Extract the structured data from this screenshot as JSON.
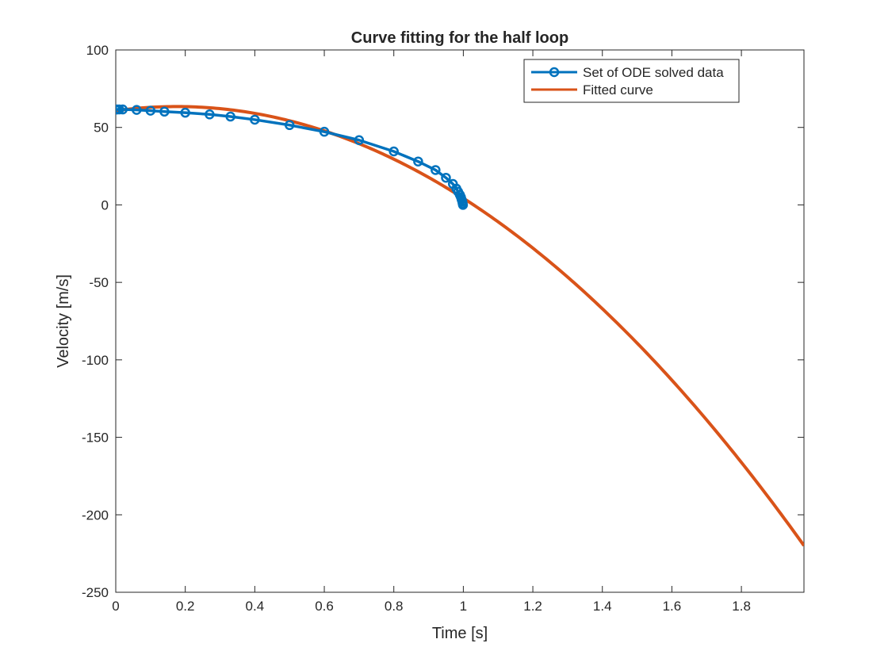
{
  "chart_data": {
    "type": "line",
    "title": "Curve fitting for the half loop",
    "xlabel": "Time [s]",
    "ylabel": "Velocity [m/s]",
    "xlim": [
      0,
      1.98
    ],
    "ylim": [
      -250,
      100
    ],
    "xticks": [
      0,
      0.2,
      0.4,
      0.6,
      0.8,
      1,
      1.2,
      1.4,
      1.6,
      1.8
    ],
    "xtick_labels": [
      "0",
      "0.2",
      "0.4",
      "0.6",
      "0.8",
      "1",
      "1.2",
      "1.4",
      "1.6",
      "1.8"
    ],
    "yticks": [
      100,
      50,
      0,
      -50,
      -100,
      -150,
      -200,
      -250
    ],
    "ytick_labels": [
      "100",
      "50",
      "0",
      "-50",
      "-100",
      "-150",
      "-200",
      "-250"
    ],
    "grid": false,
    "legend_location": "top-right",
    "series": [
      {
        "name": "Set of ODE solved data",
        "color": "#0072BD",
        "marker": "circle",
        "x": [
          0,
          0.004,
          0.01,
          0.02,
          0.06,
          0.1,
          0.14,
          0.2,
          0.27,
          0.33,
          0.4,
          0.5,
          0.6,
          0.7,
          0.8,
          0.87,
          0.92,
          0.95,
          0.97,
          0.98,
          0.985,
          0.99,
          0.993,
          0.995,
          0.997,
          0.998,
          0.999
        ],
        "y": [
          61.5,
          61.6,
          61.6,
          61.6,
          61.3,
          60.8,
          60.2,
          59.5,
          58.4,
          57.0,
          55.0,
          51.5,
          47.2,
          41.8,
          34.5,
          28.0,
          22.5,
          17.5,
          13.5,
          10.5,
          8.5,
          6.5,
          5.0,
          3.5,
          2.2,
          1.0,
          0.0
        ]
      },
      {
        "name": "Fitted curve",
        "color": "#D95319",
        "coefficients": {
          "a": -87.0,
          "b": 30.5,
          "c": 60.8
        },
        "x_range": [
          0,
          1.98
        ]
      }
    ]
  }
}
